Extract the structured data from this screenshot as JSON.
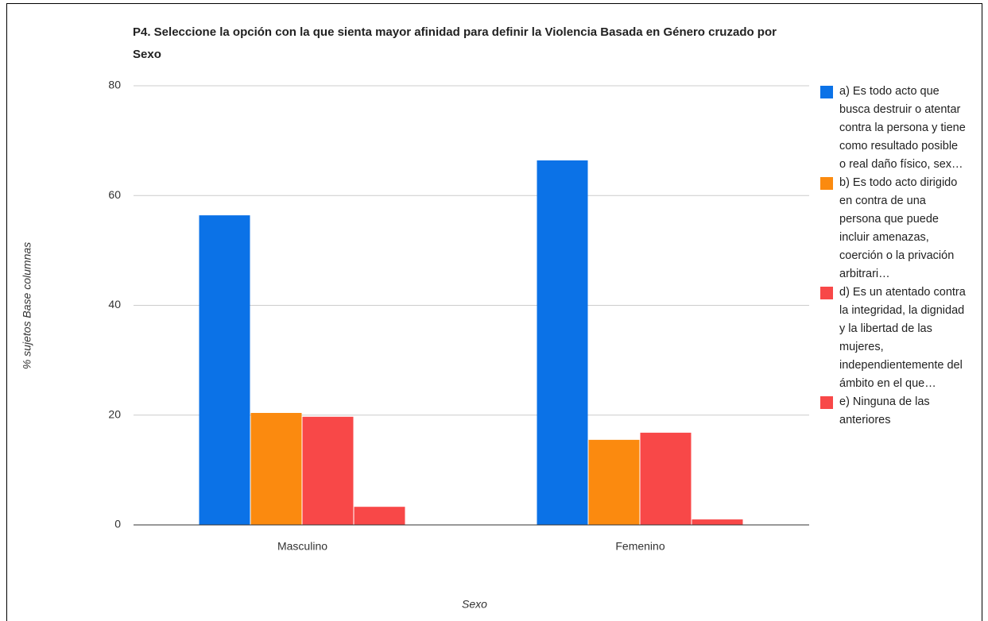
{
  "chart_data": {
    "type": "bar",
    "title": "P4. Seleccione la opción con la que sienta mayor afinidad para definir la Violencia Basada en Género cruzado por Sexo",
    "x_label": "Sexo",
    "y_label": "% sujetos Base columnas",
    "categories": [
      "Masculino",
      "Femenino"
    ],
    "series": [
      {
        "name": "a) Es todo acto que busca destruir o atentar contra la persona y tiene como resultado posible o real daño físico, sex…",
        "color": "#0b72e7",
        "values": [
          56.4,
          66.4
        ]
      },
      {
        "name": "b) Es todo acto dirigido en contra de una persona que puede incluir amenazas, coerción o la privación arbitrari…",
        "color": "#fb8a0f",
        "values": [
          20.4,
          15.5
        ]
      },
      {
        "name": "d) Es un atentado contra la integridad, la dignidad y la libertad de las mujeres, independientemente del ámbito en el que…",
        "color": "#f84848",
        "values": [
          19.7,
          16.8
        ]
      },
      {
        "name": "e) Ninguna de las anteriores",
        "color": "#f84848",
        "values": [
          3.3,
          1.0
        ]
      }
    ],
    "ylim": [
      0,
      80
    ],
    "yticks": [
      0,
      20,
      40,
      60,
      80
    ],
    "grid": true,
    "legend": "right"
  }
}
